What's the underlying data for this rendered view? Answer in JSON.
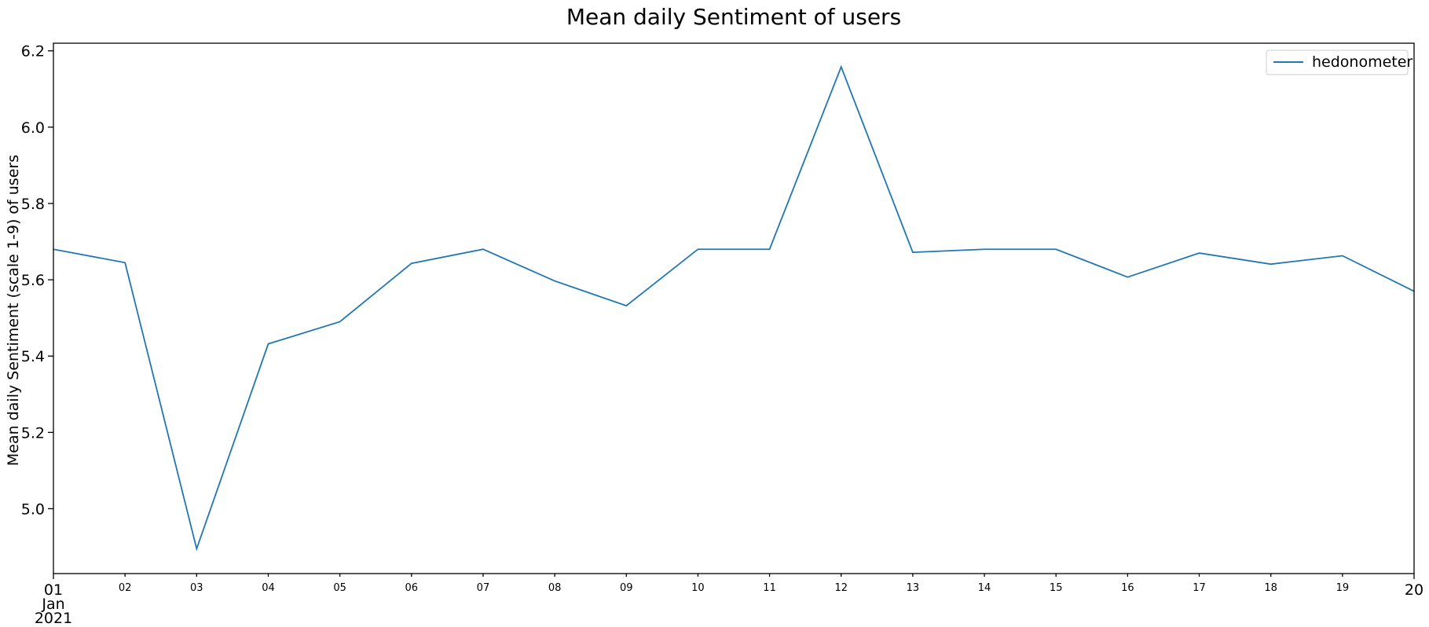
{
  "chart_data": {
    "type": "line",
    "title": "Mean daily Sentiment of users",
    "xlabel": "",
    "ylabel": "Mean daily Sentiment (scale 1-9) of users",
    "x": [
      "2021-01-01",
      "2021-01-02",
      "2021-01-03",
      "2021-01-04",
      "2021-01-05",
      "2021-01-06",
      "2021-01-07",
      "2021-01-08",
      "2021-01-09",
      "2021-01-10",
      "2021-01-11",
      "2021-01-12",
      "2021-01-13",
      "2021-01-14",
      "2021-01-15",
      "2021-01-16",
      "2021-01-17",
      "2021-01-18",
      "2021-01-19",
      "2021-01-20"
    ],
    "x_tick_labels": [
      {
        "day": "01",
        "month": "Jan",
        "year": "2021"
      },
      {
        "day": "02"
      },
      {
        "day": "03"
      },
      {
        "day": "04"
      },
      {
        "day": "05"
      },
      {
        "day": "06"
      },
      {
        "day": "07"
      },
      {
        "day": "08"
      },
      {
        "day": "09"
      },
      {
        "day": "10"
      },
      {
        "day": "11"
      },
      {
        "day": "12"
      },
      {
        "day": "13"
      },
      {
        "day": "14"
      },
      {
        "day": "15"
      },
      {
        "day": "16"
      },
      {
        "day": "17"
      },
      {
        "day": "18"
      },
      {
        "day": "19"
      },
      {
        "day": "20"
      }
    ],
    "series": [
      {
        "name": "hedonometer",
        "color": "#1f77b4",
        "values": [
          5.68,
          5.645,
          4.895,
          5.432,
          5.49,
          5.643,
          5.68,
          5.597,
          5.532,
          5.68,
          5.68,
          6.158,
          5.672,
          5.68,
          5.68,
          5.607,
          5.67,
          5.641,
          5.663,
          5.57
        ]
      }
    ],
    "ylim": [
      4.83,
      6.22
    ],
    "yticks": [
      "5.0",
      "5.2",
      "5.4",
      "5.6",
      "5.8",
      "6.0",
      "6.2"
    ],
    "legend_position": "top-right",
    "grid": false
  }
}
